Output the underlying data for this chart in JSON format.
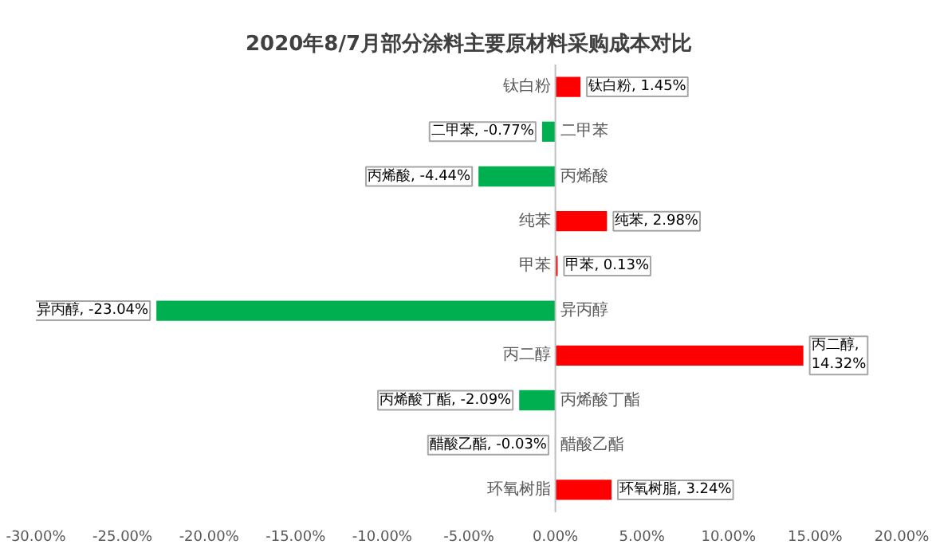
{
  "chart_data": {
    "type": "bar",
    "orientation": "horizontal",
    "title": "2020年8/7月部分涂料主要原材料采购成本对比",
    "categories": [
      "钛白粉",
      "二甲苯",
      "丙烯酸",
      "纯苯",
      "甲苯",
      "异丙醇",
      "丙二醇",
      "丙烯酸丁酯",
      "醋酸乙酯",
      "环氧树脂"
    ],
    "values": [
      1.45,
      -0.77,
      -4.44,
      2.98,
      0.13,
      -23.04,
      14.32,
      -2.09,
      -0.03,
      3.24
    ],
    "colors": [
      "#ff0000",
      "#00b050",
      "#00b050",
      "#ff0000",
      "#ff0000",
      "#00b050",
      "#ff0000",
      "#00b050",
      "#00b050",
      "#ff0000"
    ],
    "value_labels": [
      "钛白粉, 1.45%",
      "二甲苯, -0.77%",
      "丙烯酸, -4.44%",
      "纯苯, 2.98%",
      "甲苯, 0.13%",
      "异丙醇, -23.04%",
      "丙二醇, 14.32%",
      "丙烯酸丁酯, -2.09%",
      "醋酸乙酯, -0.03%",
      "环氧树脂, 3.24%"
    ],
    "xlim": [
      -30,
      20
    ],
    "xticks": [
      {
        "value": -30,
        "label": "-30.00%"
      },
      {
        "value": -25,
        "label": "-25.00%"
      },
      {
        "value": -20,
        "label": "-20.00%"
      },
      {
        "value": -15,
        "label": "-15.00%"
      },
      {
        "value": -10,
        "label": "-10.00%"
      },
      {
        "value": -5,
        "label": "-5.00%"
      },
      {
        "value": 0,
        "label": "0.00%"
      },
      {
        "value": 5,
        "label": "5.00%"
      },
      {
        "value": 10,
        "label": "10.00%"
      },
      {
        "value": 15,
        "label": "15.00%"
      },
      {
        "value": 20,
        "label": "20.00%"
      }
    ],
    "grid": false
  }
}
